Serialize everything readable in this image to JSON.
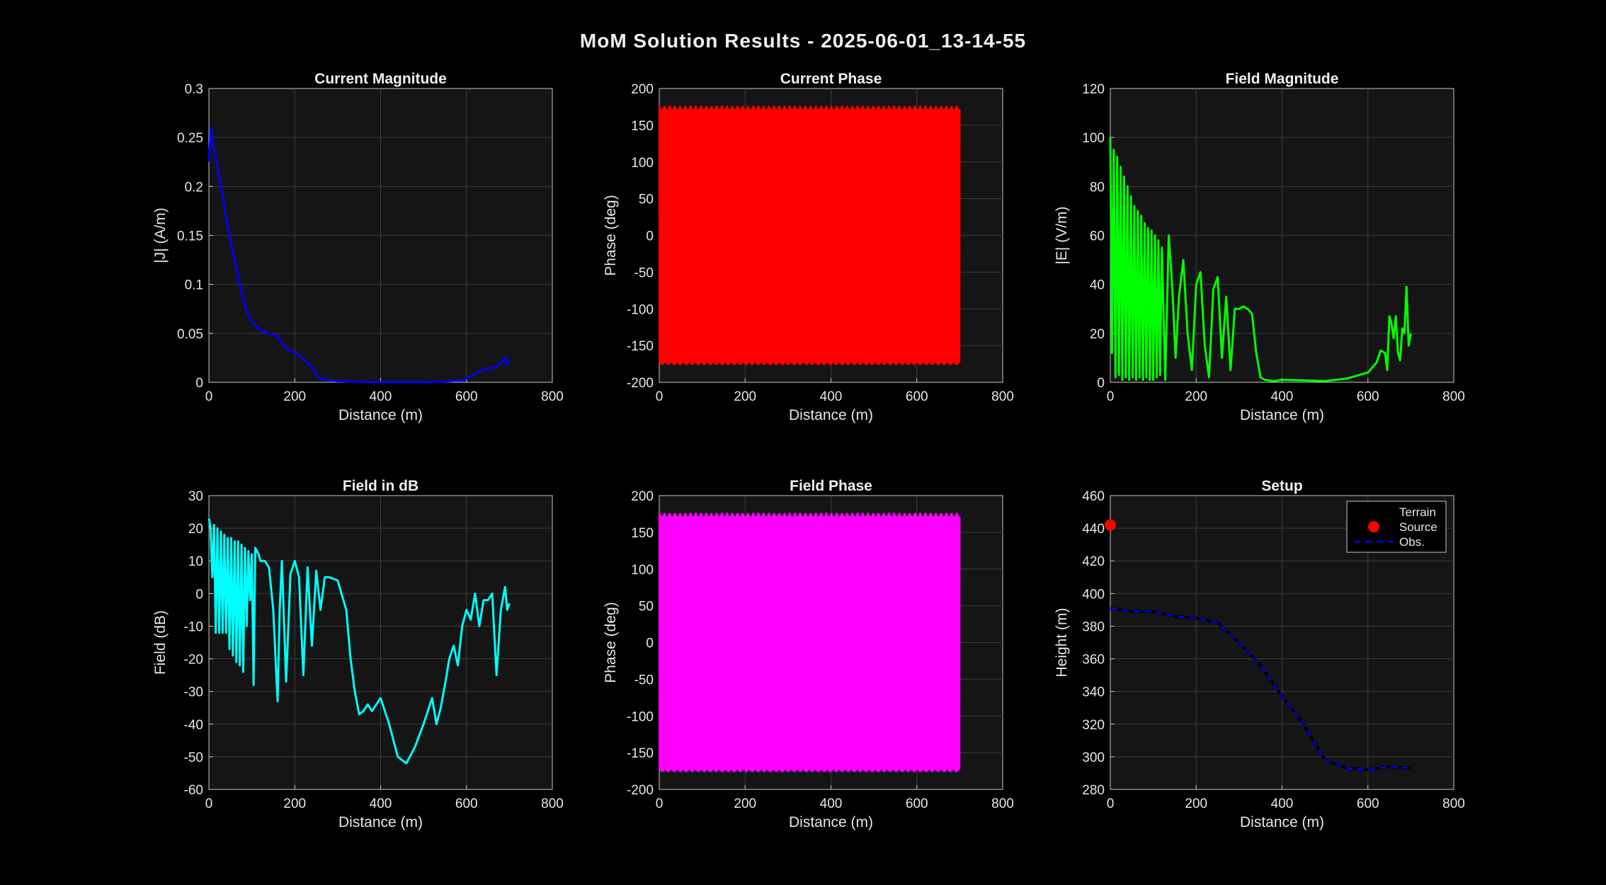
{
  "figure": {
    "title": "MoM Solution Results - 2025-06-01_13-14-55"
  },
  "chart_data": [
    {
      "type": "line",
      "title": "Current Magnitude",
      "xlabel": "Distance (m)",
      "ylabel": "|J| (A/m)",
      "xlim": [
        0,
        800
      ],
      "ylim": [
        0,
        0.3
      ],
      "xticks": [
        0,
        200,
        400,
        600,
        800
      ],
      "yticks": [
        0,
        0.05,
        0.1,
        0.15,
        0.2,
        0.25,
        0.3
      ],
      "grid": true,
      "color": "#0000ff",
      "series": [
        {
          "x": [
            0,
            5,
            10,
            20,
            30,
            40,
            50,
            60,
            70,
            80,
            90,
            100,
            110,
            120,
            140,
            160,
            170,
            180,
            200,
            220,
            240,
            250,
            260,
            280,
            300,
            350,
            400,
            450,
            500,
            550,
            590,
            600,
            620,
            640,
            650,
            660,
            670,
            680,
            690,
            695,
            700
          ],
          "y": [
            0.225,
            0.26,
            0.24,
            0.22,
            0.195,
            0.17,
            0.145,
            0.125,
            0.105,
            0.085,
            0.07,
            0.062,
            0.057,
            0.053,
            0.05,
            0.047,
            0.04,
            0.035,
            0.03,
            0.024,
            0.016,
            0.008,
            0.004,
            0.002,
            0.001,
            0.0005,
            0.0002,
            0.0001,
            0.0002,
            0.0008,
            0.002,
            0.004,
            0.009,
            0.013,
            0.014,
            0.015,
            0.016,
            0.02,
            0.025,
            0.018,
            0.022
          ]
        }
      ]
    },
    {
      "type": "line",
      "title": "Current Phase",
      "xlabel": "Distance (m)",
      "ylabel": "Phase (deg)",
      "xlim": [
        0,
        800
      ],
      "ylim": [
        -200,
        200
      ],
      "xticks": [
        0,
        200,
        400,
        600,
        800
      ],
      "yticks": [
        -200,
        -150,
        -100,
        -50,
        0,
        50,
        100,
        150,
        200
      ],
      "grid": true,
      "color": "#ff0000",
      "series": [
        {
          "x_range": [
            0,
            700
          ],
          "band": [
            -180,
            180
          ],
          "style": "dense-oscillation"
        }
      ]
    },
    {
      "type": "line",
      "title": "Field Magnitude",
      "xlabel": "Distance (m)",
      "ylabel": "|E| (V/m)",
      "xlim": [
        0,
        800
      ],
      "ylim": [
        0,
        120
      ],
      "xticks": [
        0,
        200,
        400,
        600,
        800
      ],
      "yticks": [
        0,
        20,
        40,
        60,
        80,
        100,
        120
      ],
      "grid": true,
      "color": "#00ff00",
      "series": [
        {
          "x": [
            0,
            4,
            8,
            12,
            16,
            20,
            24,
            28,
            32,
            36,
            40,
            44,
            48,
            52,
            56,
            60,
            64,
            68,
            72,
            76,
            80,
            84,
            88,
            92,
            96,
            100,
            104,
            108,
            112,
            116,
            120,
            128,
            136,
            144,
            152,
            160,
            170,
            180,
            190,
            200,
            210,
            220,
            230,
            240,
            250,
            260,
            270,
            280,
            290,
            300,
            310,
            320,
            330,
            340,
            350,
            360,
            380,
            400,
            450,
            500,
            550,
            580,
            600,
            620,
            630,
            640,
            645,
            650,
            655,
            660,
            665,
            670,
            675,
            680,
            685,
            690,
            695,
            700
          ],
          "y": [
            100,
            12,
            95,
            2,
            92,
            3,
            88,
            1,
            84,
            2,
            80,
            1,
            76,
            2,
            72,
            1,
            70,
            2,
            68,
            1,
            65,
            2,
            63,
            1,
            62,
            1,
            60,
            2,
            58,
            3,
            55,
            1,
            60,
            40,
            10,
            35,
            50,
            20,
            5,
            40,
            45,
            15,
            2,
            38,
            43,
            10,
            35,
            5,
            30,
            30,
            31,
            30,
            28,
            12,
            2,
            1,
            0.5,
            1,
            0.8,
            0.5,
            1.5,
            3,
            4,
            8,
            13,
            12,
            5,
            27,
            24,
            18,
            27,
            12,
            9,
            22,
            20,
            39,
            15,
            20
          ]
        }
      ]
    },
    {
      "type": "line",
      "title": "Field in dB",
      "xlabel": "Distance (m)",
      "ylabel": "Field (dB)",
      "xlim": [
        0,
        800
      ],
      "ylim": [
        -60,
        30
      ],
      "xticks": [
        0,
        200,
        400,
        600,
        800
      ],
      "yticks": [
        -60,
        -50,
        -40,
        -30,
        -20,
        -10,
        0,
        10,
        20,
        30
      ],
      "grid": true,
      "color": "#00ffff",
      "series": [
        {
          "x": [
            0,
            4,
            8,
            12,
            16,
            20,
            24,
            28,
            32,
            36,
            40,
            44,
            48,
            52,
            56,
            60,
            64,
            68,
            72,
            76,
            80,
            84,
            88,
            92,
            96,
            100,
            104,
            108,
            112,
            116,
            120,
            130,
            140,
            150,
            160,
            165,
            170,
            180,
            190,
            200,
            210,
            220,
            230,
            240,
            250,
            260,
            270,
            280,
            300,
            320,
            330,
            340,
            350,
            360,
            370,
            380,
            400,
            420,
            440,
            460,
            480,
            500,
            520,
            530,
            540,
            550,
            560,
            570,
            580,
            590,
            600,
            610,
            620,
            630,
            640,
            650,
            660,
            670,
            680,
            690,
            695,
            700
          ],
          "y": [
            23,
            20,
            5,
            21,
            -12,
            20,
            -12,
            19,
            -12,
            18,
            -12,
            17,
            -17,
            17,
            -19,
            16,
            -21,
            16,
            -22,
            15,
            -24,
            14,
            -10,
            13,
            -2,
            12,
            -28,
            14,
            13,
            12,
            10,
            10,
            8,
            -5,
            -33,
            -5,
            10,
            -27,
            6,
            10,
            5,
            -25,
            8,
            -16,
            7,
            -5,
            5,
            5,
            4,
            -5,
            -20,
            -30,
            -37,
            -36,
            -34,
            -36,
            -32,
            -40,
            -50,
            -52,
            -47,
            -40,
            -32,
            -40,
            -35,
            -28,
            -20,
            -16,
            -22,
            -10,
            -5,
            -8,
            0,
            -10,
            -2,
            -2,
            0,
            -25,
            -5,
            2,
            -5,
            -3
          ]
        }
      ]
    },
    {
      "type": "line",
      "title": "Field Phase",
      "xlabel": "Distance (m)",
      "ylabel": "Phase (deg)",
      "xlim": [
        0,
        800
      ],
      "ylim": [
        -200,
        200
      ],
      "xticks": [
        0,
        200,
        400,
        600,
        800
      ],
      "yticks": [
        -200,
        -150,
        -100,
        -50,
        0,
        50,
        100,
        150,
        200
      ],
      "grid": true,
      "color": "#ff00ff",
      "series": [
        {
          "x_range": [
            0,
            700
          ],
          "band": [
            -180,
            180
          ],
          "style": "dense-oscillation"
        }
      ]
    },
    {
      "type": "line",
      "title": "Setup",
      "xlabel": "Distance (m)",
      "ylabel": "Height (m)",
      "xlim": [
        0,
        800
      ],
      "ylim": [
        280,
        460
      ],
      "xticks": [
        0,
        200,
        400,
        600,
        800
      ],
      "yticks": [
        280,
        300,
        320,
        340,
        360,
        380,
        400,
        420,
        440,
        460
      ],
      "grid": true,
      "legend": {
        "position": "top-right",
        "entries": [
          "Terrain",
          "Source",
          "Obs."
        ]
      },
      "series": [
        {
          "name": "Terrain",
          "color": "#000000",
          "x": [
            0,
            50,
            100,
            150,
            200,
            250,
            300,
            350,
            400,
            450,
            500,
            550,
            600,
            650,
            700
          ],
          "y": [
            391,
            389,
            389,
            386,
            385,
            382,
            370,
            356,
            337,
            320,
            298,
            293,
            292,
            294,
            293
          ]
        },
        {
          "name": "Source",
          "color": "#ff0000",
          "x": [
            0
          ],
          "y": [
            442
          ]
        },
        {
          "name": "Obs.",
          "color": "#0000ff",
          "x": [
            0,
            50,
            100,
            150,
            200,
            250,
            300,
            350,
            400,
            450,
            500,
            550,
            600,
            650,
            700
          ],
          "y": [
            391,
            389,
            389,
            386,
            385,
            382,
            370,
            356,
            337,
            320,
            298,
            293,
            292,
            294,
            293
          ]
        }
      ]
    }
  ]
}
